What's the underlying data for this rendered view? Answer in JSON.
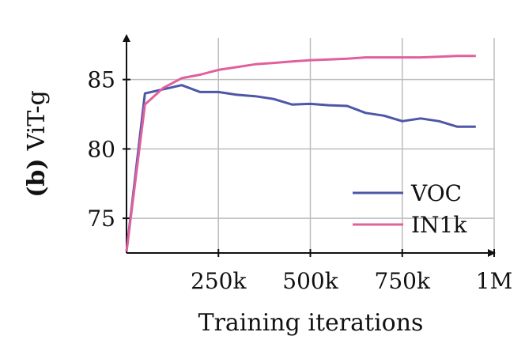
{
  "chart_data": {
    "type": "line",
    "ylabel_prefix": "(b)",
    "ylabel": "ViT-g",
    "xlabel": "Training iterations",
    "xlim": [
      0,
      1000000
    ],
    "ylim": [
      72.5,
      88
    ],
    "xticks": [
      250000,
      500000,
      750000,
      1000000
    ],
    "xtick_labels": [
      "250k",
      "500k",
      "750k",
      "1M"
    ],
    "yticks": [
      75,
      80,
      85
    ],
    "ytick_labels": [
      "75",
      "80",
      "85"
    ],
    "grid": true,
    "legend_position": "bottom-right",
    "series": [
      {
        "name": "VOC",
        "color": "#4d57a6",
        "x": [
          0,
          50000,
          100000,
          150000,
          200000,
          250000,
          300000,
          350000,
          400000,
          450000,
          500000,
          550000,
          600000,
          650000,
          700000,
          750000,
          800000,
          850000,
          900000,
          950000
        ],
        "y": [
          72.6,
          84.0,
          84.3,
          84.6,
          84.1,
          84.1,
          83.9,
          83.8,
          83.6,
          83.2,
          83.25,
          83.15,
          83.1,
          82.6,
          82.4,
          82.0,
          82.2,
          82.0,
          81.6,
          81.6
        ]
      },
      {
        "name": "IN1k",
        "color": "#e0609e",
        "x": [
          0,
          50000,
          100000,
          150000,
          200000,
          250000,
          300000,
          350000,
          400000,
          450000,
          500000,
          550000,
          600000,
          650000,
          700000,
          750000,
          800000,
          850000,
          900000,
          950000
        ],
        "y": [
          72.6,
          83.2,
          84.4,
          85.1,
          85.35,
          85.7,
          85.9,
          86.1,
          86.2,
          86.3,
          86.4,
          86.45,
          86.5,
          86.6,
          86.6,
          86.6,
          86.6,
          86.65,
          86.7,
          86.7
        ]
      }
    ]
  }
}
